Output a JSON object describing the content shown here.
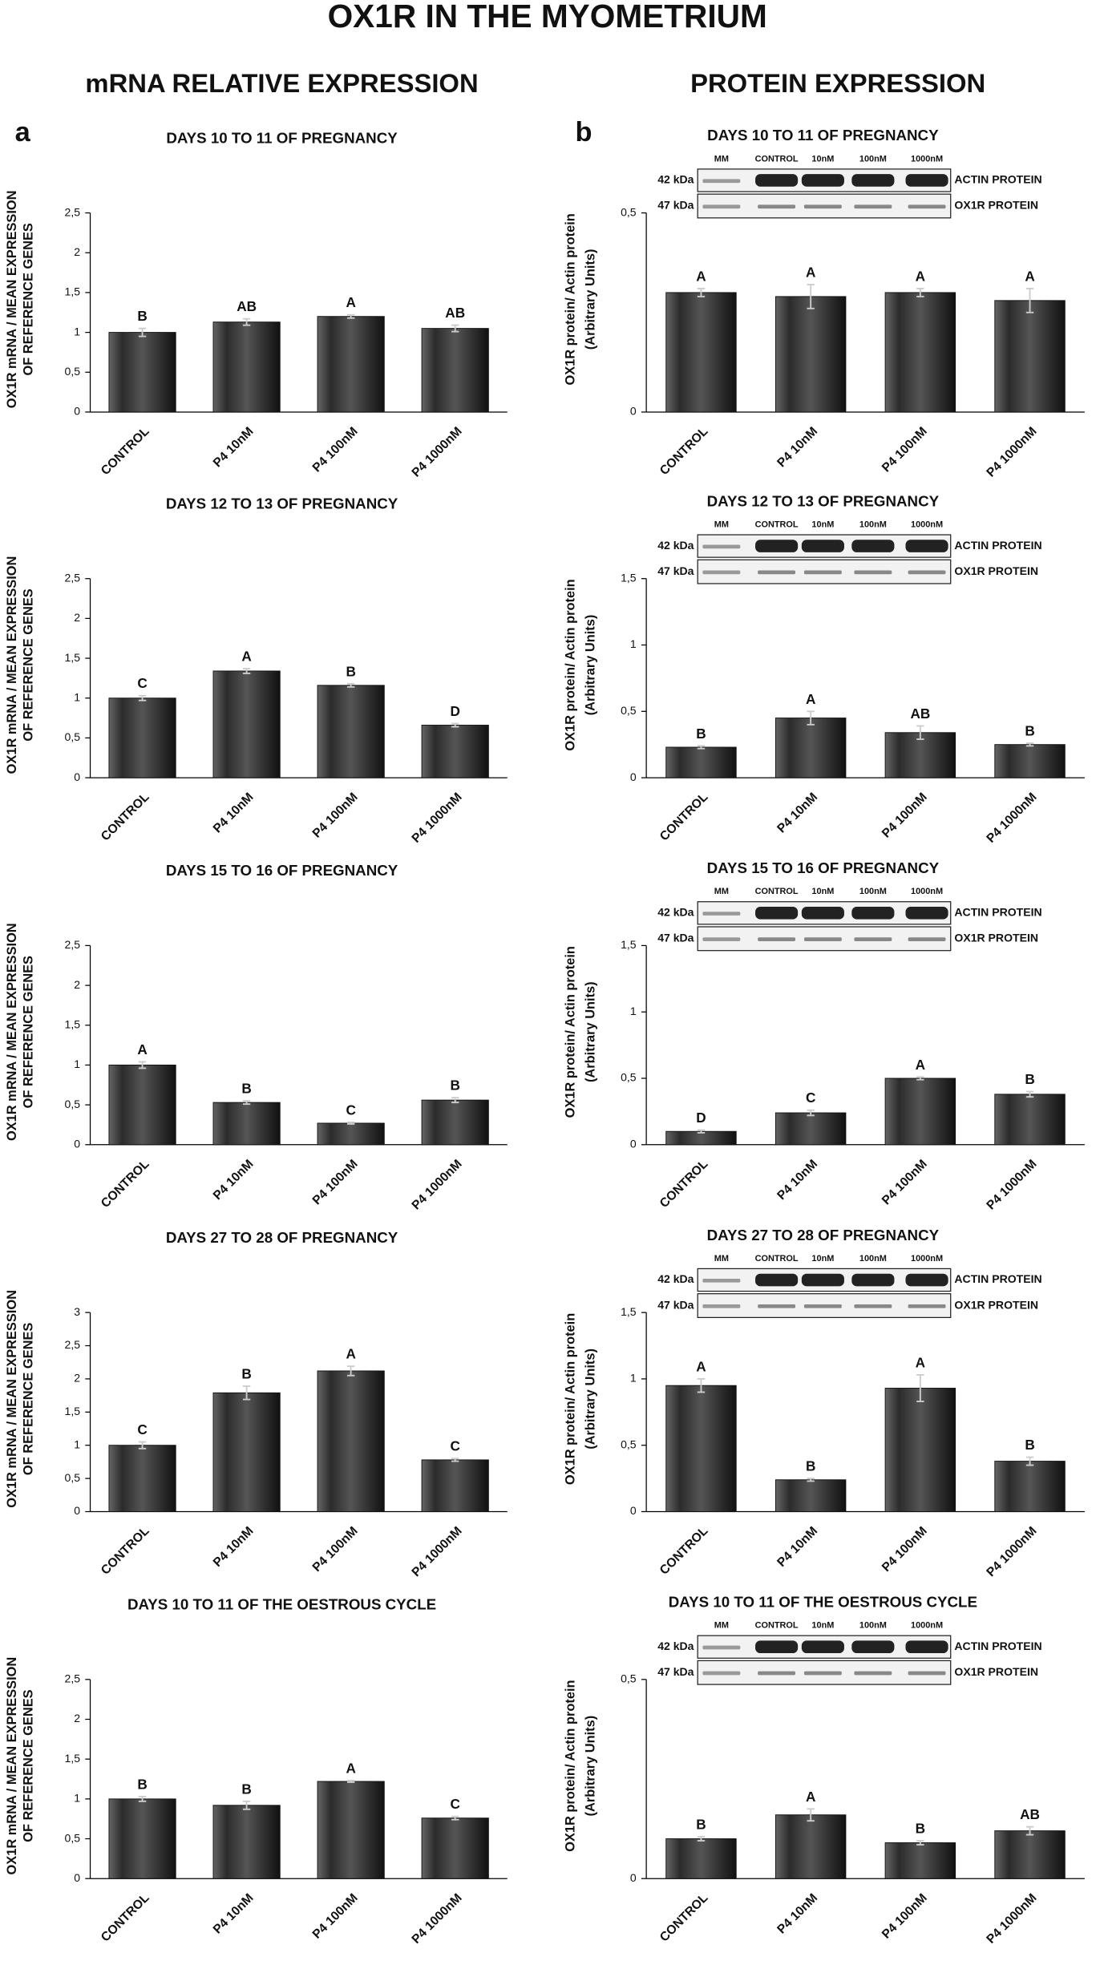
{
  "figure": {
    "title": "OX1R IN THE MYOMETRIUM",
    "panels": [
      {
        "letter": "a",
        "heading": "mRNA RELATIVE EXPRESSION"
      },
      {
        "letter": "b",
        "heading": "PROTEIN EXPRESSION"
      }
    ]
  },
  "chart_data": [
    {
      "type": "bar",
      "title": "DAYS 10 TO 11 OF PREGNANCY",
      "ylabel": [
        "OX1R mRNA / MEAN EXPRESSION",
        "OF REFERENCE GENES"
      ],
      "categories": [
        "CONTROL",
        "P4 10nM",
        "P4 100nM",
        "P4 1000nM"
      ],
      "values": [
        1.0,
        1.13,
        1.2,
        1.05
      ],
      "errors": [
        0.05,
        0.04,
        0.02,
        0.04
      ],
      "letters": [
        "B",
        "AB",
        "A",
        "AB"
      ],
      "color": "#2b2b2b",
      "ylim": [
        0,
        2.5
      ],
      "yticks": [
        0,
        {
          "value": 0.5,
          "label": "0,5"
        },
        1,
        {
          "value": 1.5,
          "label": "1,5"
        },
        2,
        {
          "value": 2.5,
          "label": "2,5"
        }
      ]
    },
    {
      "type": "bar",
      "title": "DAYS 10 TO 11 OF PREGNANCY",
      "ylabel": [
        "OX1R protein/ Actin protein",
        "(Arbitrary Units)"
      ],
      "categories": [
        "CONTROL",
        "P4 10nM",
        "P4 100nM",
        "P4 1000nM"
      ],
      "values": [
        0.3,
        0.29,
        0.3,
        0.28
      ],
      "errors": [
        0.01,
        0.03,
        0.01,
        0.03
      ],
      "letters": [
        "A",
        "A",
        "A",
        "A"
      ],
      "color": "#2b2b2b",
      "ylim": [
        0,
        0.5
      ],
      "yticks": [
        0,
        {
          "value": 0.5,
          "label": "0,5"
        }
      ],
      "blot": {
        "lanes": [
          "MM",
          "CONTROL",
          "10nM",
          "100nM",
          "1000nM"
        ],
        "sizes": [
          "42 kDa",
          "47 kDa"
        ],
        "proteins": [
          "ACTIN PROTEIN",
          "OX1R PROTEIN"
        ]
      }
    },
    {
      "type": "bar",
      "title": "DAYS 12 TO 13 OF PREGNANCY",
      "ylabel": [
        "OX1R mRNA / MEAN EXPRESSION",
        "OF REFERENCE GENES"
      ],
      "categories": [
        "CONTROL",
        "P4 10nM",
        "P4 100nM",
        "P4 1000nM"
      ],
      "values": [
        1.0,
        1.34,
        1.16,
        0.66
      ],
      "errors": [
        0.03,
        0.03,
        0.02,
        0.02
      ],
      "letters": [
        "C",
        "A",
        "B",
        "D"
      ],
      "color": "#2b2b2b",
      "ylim": [
        0,
        2.5
      ],
      "yticks": [
        0,
        {
          "value": 0.5,
          "label": "0,5"
        },
        1,
        {
          "value": 1.5,
          "label": "1,5"
        },
        2,
        {
          "value": 2.5,
          "label": "2,5"
        }
      ]
    },
    {
      "type": "bar",
      "title": "DAYS 12 TO 13 OF PREGNANCY",
      "ylabel": [
        "OX1R protein/ Actin protein",
        "(Arbitrary Units)"
      ],
      "categories": [
        "CONTROL",
        "P4 10nM",
        "P4 100nM",
        "P4 1000nM"
      ],
      "values": [
        0.23,
        0.45,
        0.34,
        0.25
      ],
      "errors": [
        0.01,
        0.05,
        0.05,
        0.01
      ],
      "letters": [
        "B",
        "A",
        "AB",
        "B"
      ],
      "color": "#2b2b2b",
      "ylim": [
        0,
        1.5
      ],
      "yticks": [
        0,
        {
          "value": 0.5,
          "label": "0,5"
        },
        1,
        {
          "value": 1.5,
          "label": "1,5"
        }
      ],
      "blot": {
        "lanes": [
          "MM",
          "CONTROL",
          "10nM",
          "100nM",
          "1000nM"
        ],
        "sizes": [
          "42 kDa",
          "47 kDa"
        ],
        "proteins": [
          "ACTIN PROTEIN",
          "OX1R PROTEIN"
        ]
      }
    },
    {
      "type": "bar",
      "title": "DAYS 15 TO 16 OF PREGNANCY",
      "ylabel": [
        "OX1R mRNA / MEAN EXPRESSION",
        "OF REFERENCE GENES"
      ],
      "categories": [
        "CONTROL",
        "P4 10nM",
        "P4 100nM",
        "P4 1000nM"
      ],
      "values": [
        1.0,
        0.53,
        0.27,
        0.56
      ],
      "errors": [
        0.04,
        0.02,
        0.01,
        0.03
      ],
      "letters": [
        "A",
        "B",
        "C",
        "B"
      ],
      "color": "#2b2b2b",
      "ylim": [
        0,
        2.5
      ],
      "yticks": [
        0,
        {
          "value": 0.5,
          "label": "0,5"
        },
        1,
        {
          "value": 1.5,
          "label": "1,5"
        },
        2,
        {
          "value": 2.5,
          "label": "2,5"
        }
      ]
    },
    {
      "type": "bar",
      "title": "DAYS 15 TO 16 OF PREGNANCY",
      "ylabel": [
        "OX1R protein/ Actin protein",
        "(Arbitrary Units)"
      ],
      "categories": [
        "CONTROL",
        "P4 10nM",
        "P4 100nM",
        "P4 1000nM"
      ],
      "values": [
        0.1,
        0.24,
        0.5,
        0.38
      ],
      "errors": [
        0.01,
        0.02,
        0.01,
        0.02
      ],
      "letters": [
        "D",
        "C",
        "A",
        "B"
      ],
      "color": "#2b2b2b",
      "ylim": [
        0,
        1.5
      ],
      "yticks": [
        0,
        {
          "value": 0.5,
          "label": "0,5"
        },
        1,
        {
          "value": 1.5,
          "label": "1,5"
        }
      ],
      "blot": {
        "lanes": [
          "MM",
          "CONTROL",
          "10nM",
          "100nM",
          "1000nM"
        ],
        "sizes": [
          "42 kDa",
          "47 kDa"
        ],
        "proteins": [
          "ACTIN PROTEIN",
          "OX1R PROTEIN"
        ]
      }
    },
    {
      "type": "bar",
      "title": "DAYS 27 TO 28 OF PREGNANCY",
      "ylabel": [
        "OX1R mRNA / MEAN EXPRESSION",
        "OF REFERENCE GENES"
      ],
      "categories": [
        "CONTROL",
        "P4 10nM",
        "P4 100nM",
        "P4 1000nM"
      ],
      "values": [
        1.0,
        1.79,
        2.12,
        0.78
      ],
      "errors": [
        0.05,
        0.1,
        0.07,
        0.02
      ],
      "letters": [
        "C",
        "B",
        "A",
        "C"
      ],
      "color": "#2b2b2b",
      "ylim": [
        0,
        3
      ],
      "yticks": [
        0,
        {
          "value": 0.5,
          "label": "0,5"
        },
        1,
        {
          "value": 1.5,
          "label": "1,5"
        },
        2,
        {
          "value": 2.5,
          "label": "2,5"
        },
        3
      ]
    },
    {
      "type": "bar",
      "title": "DAYS 27 TO 28 OF PREGNANCY",
      "ylabel": [
        "OX1R protein/ Actin protein",
        "(Arbitrary Units)"
      ],
      "categories": [
        "CONTROL",
        "P4 10nM",
        "P4 100nM",
        "P4 1000nM"
      ],
      "values": [
        0.95,
        0.24,
        0.93,
        0.38
      ],
      "errors": [
        0.05,
        0.01,
        0.1,
        0.03
      ],
      "letters": [
        "A",
        "B",
        "A",
        "B"
      ],
      "color": "#2b2b2b",
      "ylim": [
        0,
        1.5
      ],
      "yticks": [
        0,
        {
          "value": 0.5,
          "label": "0,5"
        },
        1,
        {
          "value": 1.5,
          "label": "1,5"
        }
      ],
      "blot": {
        "lanes": [
          "MM",
          "CONTROL",
          "10nM",
          "100nM",
          "1000nM"
        ],
        "sizes": [
          "42 kDa",
          "47 kDa"
        ],
        "proteins": [
          "ACTIN PROTEIN",
          "OX1R PROTEIN"
        ]
      }
    },
    {
      "type": "bar",
      "title": "DAYS 10 TO 11 OF THE OESTROUS CYCLE",
      "ylabel": [
        "OX1R mRNA / MEAN EXPRESSION",
        "OF REFERENCE GENES"
      ],
      "categories": [
        "CONTROL",
        "P4 10nM",
        "P4 100nM",
        "P4 1000nM"
      ],
      "values": [
        1.0,
        0.92,
        1.22,
        0.76
      ],
      "errors": [
        0.03,
        0.05,
        0.01,
        0.02
      ],
      "letters": [
        "B",
        "B",
        "A",
        "C"
      ],
      "color": "#2b2b2b",
      "ylim": [
        0,
        2.5
      ],
      "yticks": [
        0,
        {
          "value": 0.5,
          "label": "0,5"
        },
        1,
        {
          "value": 1.5,
          "label": "1,5"
        },
        2,
        {
          "value": 2.5,
          "label": "2,5"
        }
      ]
    },
    {
      "type": "bar",
      "title": "DAYS 10 TO 11 OF THE OESTROUS CYCLE",
      "ylabel": [
        "OX1R protein/ Actin protein",
        "(Arbitrary Units)"
      ],
      "categories": [
        "CONTROL",
        "P4 10nM",
        "P4 100nM",
        "P4 1000nM"
      ],
      "values": [
        0.1,
        0.16,
        0.09,
        0.12
      ],
      "errors": [
        0.005,
        0.015,
        0.005,
        0.01
      ],
      "letters": [
        "B",
        "A",
        "B",
        "AB"
      ],
      "color": "#2b2b2b",
      "ylim": [
        0,
        0.5
      ],
      "yticks": [
        0,
        {
          "value": 0.5,
          "label": "0,5"
        }
      ],
      "blot": {
        "lanes": [
          "MM",
          "CONTROL",
          "10nM",
          "100nM",
          "1000nM"
        ],
        "sizes": [
          "42 kDa",
          "47 kDa"
        ],
        "proteins": [
          "ACTIN PROTEIN",
          "OX1R PROTEIN"
        ]
      }
    }
  ]
}
